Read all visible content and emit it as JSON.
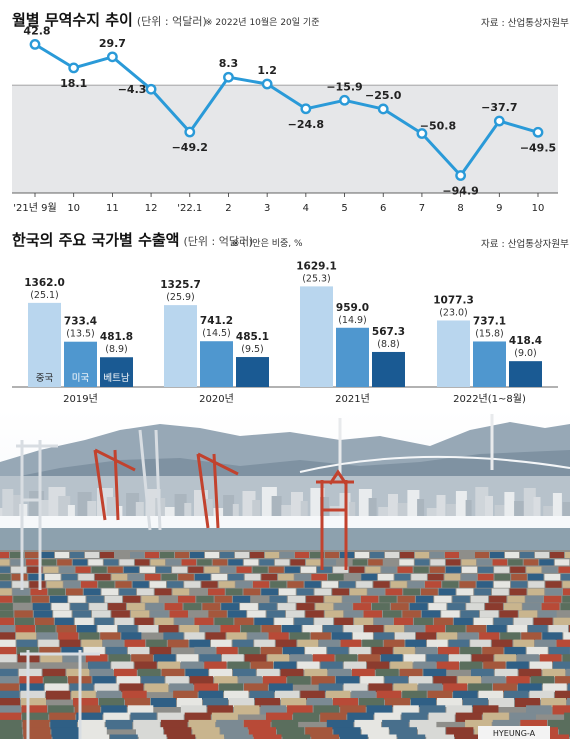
{
  "chart1": {
    "title": "월별 무역수지 추이",
    "unit": "(단위 : 억달러)",
    "note": "※ 2022년 10월은 20일 기준",
    "source": "자료 : 산업통상자원부"
  },
  "chart2": {
    "title": "한국의 주요 국가별 수출액",
    "unit": "(단위 : 억달러)",
    "note": "※ (  )안은 비중, %",
    "source": "자료 : 산업통상자원부"
  },
  "chart_data": [
    {
      "type": "line",
      "title": "월별 무역수지 추이",
      "categories": [
        "'21년 9월",
        "10",
        "11",
        "12",
        "'22.1",
        "2",
        "3",
        "4",
        "5",
        "6",
        "7",
        "8",
        "9",
        "10"
      ],
      "values": [
        42.8,
        18.1,
        29.7,
        -4.3,
        -49.2,
        8.3,
        1.2,
        -24.8,
        -15.9,
        -25.0,
        -50.8,
        -94.9,
        -37.7,
        -49.5
      ],
      "value_labels": [
        "42.8",
        "18.1",
        "29.7",
        "−4.3",
        "−49.2",
        "8.3",
        "1.2",
        "−24.8",
        "−15.9",
        "−25.0",
        "−50.8",
        "−94.9",
        "−37.7",
        "−49.5"
      ],
      "ylim": [
        -108,
        60
      ],
      "negative_band": "shaded below zero",
      "line_color": "#2a9ad8"
    },
    {
      "type": "bar",
      "title": "한국의 주요 국가별 수출액",
      "categories": [
        "2019년",
        "2020년",
        "2021년",
        "2022년(1~8월)"
      ],
      "series": [
        {
          "name": "중국",
          "values": [
            1362.0,
            1325.7,
            1629.1,
            1077.3
          ],
          "labels": [
            "1362.0",
            "1325.7",
            "1629.1",
            "1077.3"
          ],
          "shares": [
            "(25.1)",
            "(25.9)",
            "(25.3)",
            "(23.0)"
          ],
          "color": "#b9d6ee"
        },
        {
          "name": "미국",
          "values": [
            733.4,
            741.2,
            959.0,
            737.1
          ],
          "labels": [
            "733.4",
            "741.2",
            "959.0",
            "737.1"
          ],
          "shares": [
            "(13.5)",
            "(14.5)",
            "(14.9)",
            "(15.8)"
          ],
          "color": "#4f97cf"
        },
        {
          "name": "베트남",
          "values": [
            481.8,
            485.1,
            567.3,
            418.4
          ],
          "labels": [
            "481.8",
            "485.1",
            "567.3",
            "418.4"
          ],
          "shares": [
            "(8.9)",
            "(9.5)",
            "(8.8)",
            "(9.0)"
          ],
          "color": "#1a5a93"
        }
      ],
      "ylim": [
        0,
        1700
      ],
      "legend": "inside first group bars"
    }
  ],
  "photo": {
    "subject": "container-port-icon",
    "sign": "HYEUNG-A"
  }
}
